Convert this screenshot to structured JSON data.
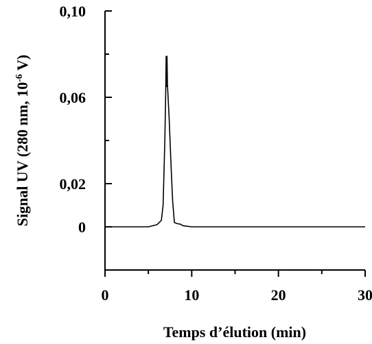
{
  "chart_data": {
    "type": "line",
    "title": "",
    "xlabel": "Temps d’élution (min)",
    "ylabel_main": "Signal UV (280 nm, 10",
    "ylabel_exponent": "-6",
    "ylabel_end": " V)",
    "xlim": [
      0,
      30
    ],
    "ylim": [
      -0.02,
      0.1
    ],
    "x_ticks": [
      0,
      10,
      20,
      30
    ],
    "x_tick_labels": [
      "0",
      "10",
      "20",
      "30"
    ],
    "x_minor_ticks": [
      5,
      15,
      25
    ],
    "y_ticks": [
      0,
      0.02,
      0.06,
      0.1
    ],
    "y_tick_labels": [
      "0",
      "0,02",
      "0,06",
      "0,10"
    ],
    "y_minor_ticks": [
      0.04,
      0.08
    ],
    "grid": false,
    "series": [
      {
        "x": [
          0,
          5.0,
          6.0,
          6.5,
          6.7,
          6.9,
          7.0,
          7.05,
          7.1,
          7.15,
          7.2,
          7.4,
          7.6,
          7.8,
          8.0,
          8.3,
          8.7,
          9.0,
          10.0,
          30.0
        ],
        "y": [
          0,
          0,
          0.001,
          0.003,
          0.01,
          0.04,
          0.062,
          0.079,
          0.065,
          0.079,
          0.066,
          0.05,
          0.03,
          0.012,
          0.002,
          0.0015,
          0.0012,
          0.0005,
          0,
          0
        ]
      }
    ]
  }
}
